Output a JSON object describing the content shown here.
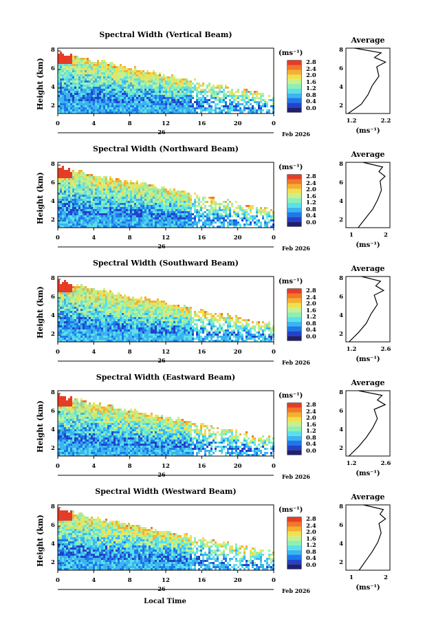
{
  "common": {
    "height_label": "Height (km)",
    "unit_label": "(ms⁻¹)",
    "average_title": "Average",
    "x_ticks": [
      "0",
      "4",
      "8",
      "12",
      "16",
      "20",
      "0"
    ],
    "date_day": "26",
    "date_label": "Feb 2026",
    "local_time_label": "Local Time",
    "colorbar_ticks": [
      "0.0",
      "0.4",
      "0.8",
      "1.2",
      "1.6",
      "2.0",
      "2.4",
      "2.8"
    ],
    "colorscale": [
      "#20206e",
      "#2442c8",
      "#1e78e8",
      "#3cb4f0",
      "#5ce0e8",
      "#8cf0b4",
      "#c8f08c",
      "#f0e050",
      "#f4b030",
      "#f07828",
      "#e63c26"
    ]
  },
  "panels": [
    {
      "title": "Spectral Width (Vertical Beam)",
      "y_ticks": [
        "2",
        "4",
        "6",
        "8"
      ],
      "avg_y_ticks": [
        "2",
        "4",
        "6",
        "8"
      ],
      "avg_x_ticks": [
        "1.2",
        "2.2"
      ],
      "avg_unit": "(ms⁻¹)",
      "seed": 11
    },
    {
      "title": "Spectral Width (Northward Beam)",
      "y_ticks": [
        "2",
        "4",
        "6",
        "8"
      ],
      "avg_y_ticks": [
        "2",
        "4",
        "6",
        "8"
      ],
      "avg_x_ticks": [
        "1",
        "2"
      ],
      "avg_unit": "(ms⁻¹)",
      "seed": 23
    },
    {
      "title": "Spectral Width (Southward Beam)",
      "y_ticks": [
        "2",
        "4",
        "6",
        "8"
      ],
      "avg_y_ticks": [
        "2",
        "4",
        "6",
        "8"
      ],
      "avg_x_ticks": [
        "1.2",
        "2.6"
      ],
      "avg_unit": "(ms⁻¹)",
      "seed": 37
    },
    {
      "title": "Spectral Width (Eastward Beam)",
      "y_ticks": [
        "2",
        "4",
        "6",
        "8"
      ],
      "avg_y_ticks": [
        "2",
        "4",
        "6",
        "8"
      ],
      "avg_x_ticks": [
        "1.2",
        "2.6"
      ],
      "avg_unit": "(ms⁻¹)",
      "seed": 41
    },
    {
      "title": "Spectral Width (Westward Beam)",
      "y_ticks": [
        "2",
        "4",
        "6",
        "8"
      ],
      "avg_y_ticks": [
        "2",
        "4",
        "6",
        "8"
      ],
      "avg_x_ticks": [
        "1",
        "2"
      ],
      "avg_unit": "(ms⁻¹)",
      "seed": 53
    }
  ],
  "chart_data": [
    {
      "type": "heatmap",
      "title": "Spectral Width (Vertical Beam)",
      "xlabel": "Local Time",
      "ylabel": "Height (km)",
      "x_range": [
        0,
        24
      ],
      "y_range": [
        1,
        8
      ],
      "colorbar_range": [
        0.0,
        2.8
      ],
      "colorbar_unit": "(ms⁻¹)",
      "average_profile": {
        "xlim": [
          1.2,
          2.2
        ],
        "heights": [
          1,
          2,
          3,
          4,
          5,
          6,
          6.5,
          7,
          7.5,
          8
        ],
        "values": [
          1.25,
          1.55,
          1.7,
          1.8,
          1.95,
          1.9,
          2.1,
          1.85,
          2.0,
          1.4
        ]
      }
    },
    {
      "type": "heatmap",
      "title": "Spectral Width (Northward Beam)",
      "xlabel": "Local Time",
      "ylabel": "Height (km)",
      "x_range": [
        0,
        24
      ],
      "y_range": [
        1,
        8
      ],
      "colorbar_range": [
        0.0,
        2.8
      ],
      "colorbar_unit": "(ms⁻¹)",
      "average_profile": {
        "xlim": [
          0.5,
          2.3
        ],
        "heights": [
          1,
          2,
          3,
          4,
          5,
          6,
          6.5,
          7,
          7.5,
          8
        ],
        "values": [
          1.0,
          1.3,
          1.6,
          1.8,
          1.95,
          1.9,
          2.1,
          1.85,
          2.0,
          1.2
        ]
      }
    },
    {
      "type": "heatmap",
      "title": "Spectral Width (Southward Beam)",
      "xlabel": "Local Time",
      "ylabel": "Height (km)",
      "x_range": [
        0,
        24
      ],
      "y_range": [
        1,
        8
      ],
      "colorbar_range": [
        0.0,
        2.8
      ],
      "colorbar_unit": "(ms⁻¹)",
      "average_profile": {
        "xlim": [
          1.2,
          2.6
        ],
        "heights": [
          1,
          2,
          3,
          4,
          5,
          6,
          6.5,
          7,
          7.5,
          8
        ],
        "values": [
          1.3,
          1.6,
          1.85,
          2.0,
          2.2,
          2.1,
          2.4,
          2.15,
          2.3,
          1.7
        ]
      }
    },
    {
      "type": "heatmap",
      "title": "Spectral Width (Eastward Beam)",
      "xlabel": "Local Time",
      "ylabel": "Height (km)",
      "x_range": [
        0,
        24
      ],
      "y_range": [
        1,
        8
      ],
      "colorbar_range": [
        0.0,
        2.8
      ],
      "colorbar_unit": "(ms⁻¹)",
      "average_profile": {
        "xlim": [
          1.2,
          2.6
        ],
        "heights": [
          1,
          2,
          3,
          4,
          5,
          6,
          6.5,
          7,
          7.5,
          8
        ],
        "values": [
          1.3,
          1.6,
          1.85,
          2.05,
          2.2,
          2.1,
          2.45,
          2.2,
          2.35,
          1.6
        ]
      }
    },
    {
      "type": "heatmap",
      "title": "Spectral Width (Westward Beam)",
      "xlabel": "Local Time",
      "ylabel": "Height (km)",
      "x_range": [
        0,
        24
      ],
      "y_range": [
        1,
        8
      ],
      "colorbar_range": [
        0.0,
        2.8
      ],
      "colorbar_unit": "(ms⁻¹)",
      "average_profile": {
        "xlim": [
          0.5,
          2.5
        ],
        "heights": [
          1,
          2,
          3,
          4,
          5,
          6,
          6.5,
          7,
          7.5,
          8
        ],
        "values": [
          1.1,
          1.4,
          1.7,
          1.95,
          2.1,
          2.0,
          2.3,
          2.05,
          2.2,
          1.3
        ]
      }
    }
  ]
}
